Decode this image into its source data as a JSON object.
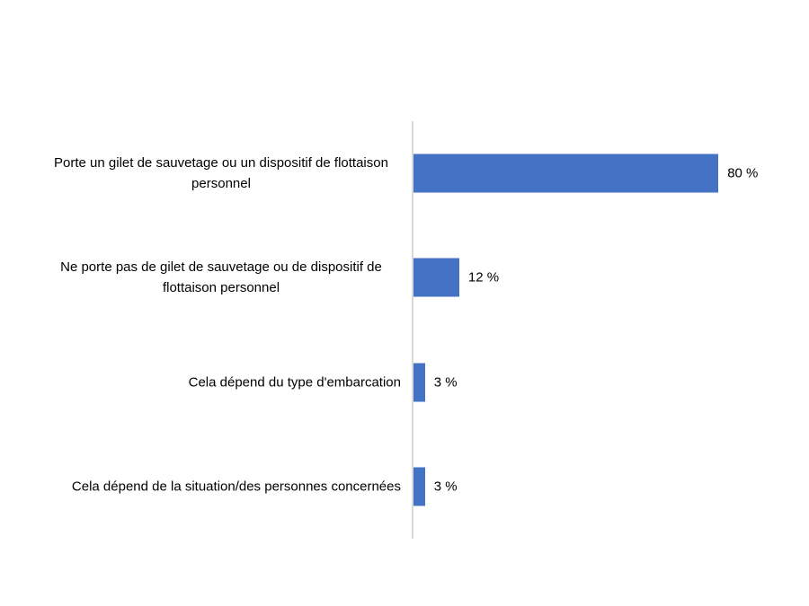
{
  "chart_data": {
    "type": "bar",
    "orientation": "horizontal",
    "title": "",
    "xlabel": "",
    "ylabel": "",
    "categories": [
      "Porte un gilet de sauvetage ou un dispositif de flottaison personnel",
      "Ne porte pas de gilet de sauvetage ou de dispositif de flottaison personnel",
      "Cela dépend du type d'embarcation",
      "Cela dépend de la situation/des personnes concernées"
    ],
    "values": [
      80,
      12,
      3,
      3
    ],
    "data_labels": [
      "80 %",
      "12 %",
      "3 %",
      "3 %"
    ],
    "value_suffix": " %",
    "xlim": [
      0,
      100
    ],
    "grid": false,
    "legend": false,
    "colors": {
      "bar": "#4472C4",
      "axis_line": "#D9D9D9",
      "label_text": "#000000"
    }
  }
}
